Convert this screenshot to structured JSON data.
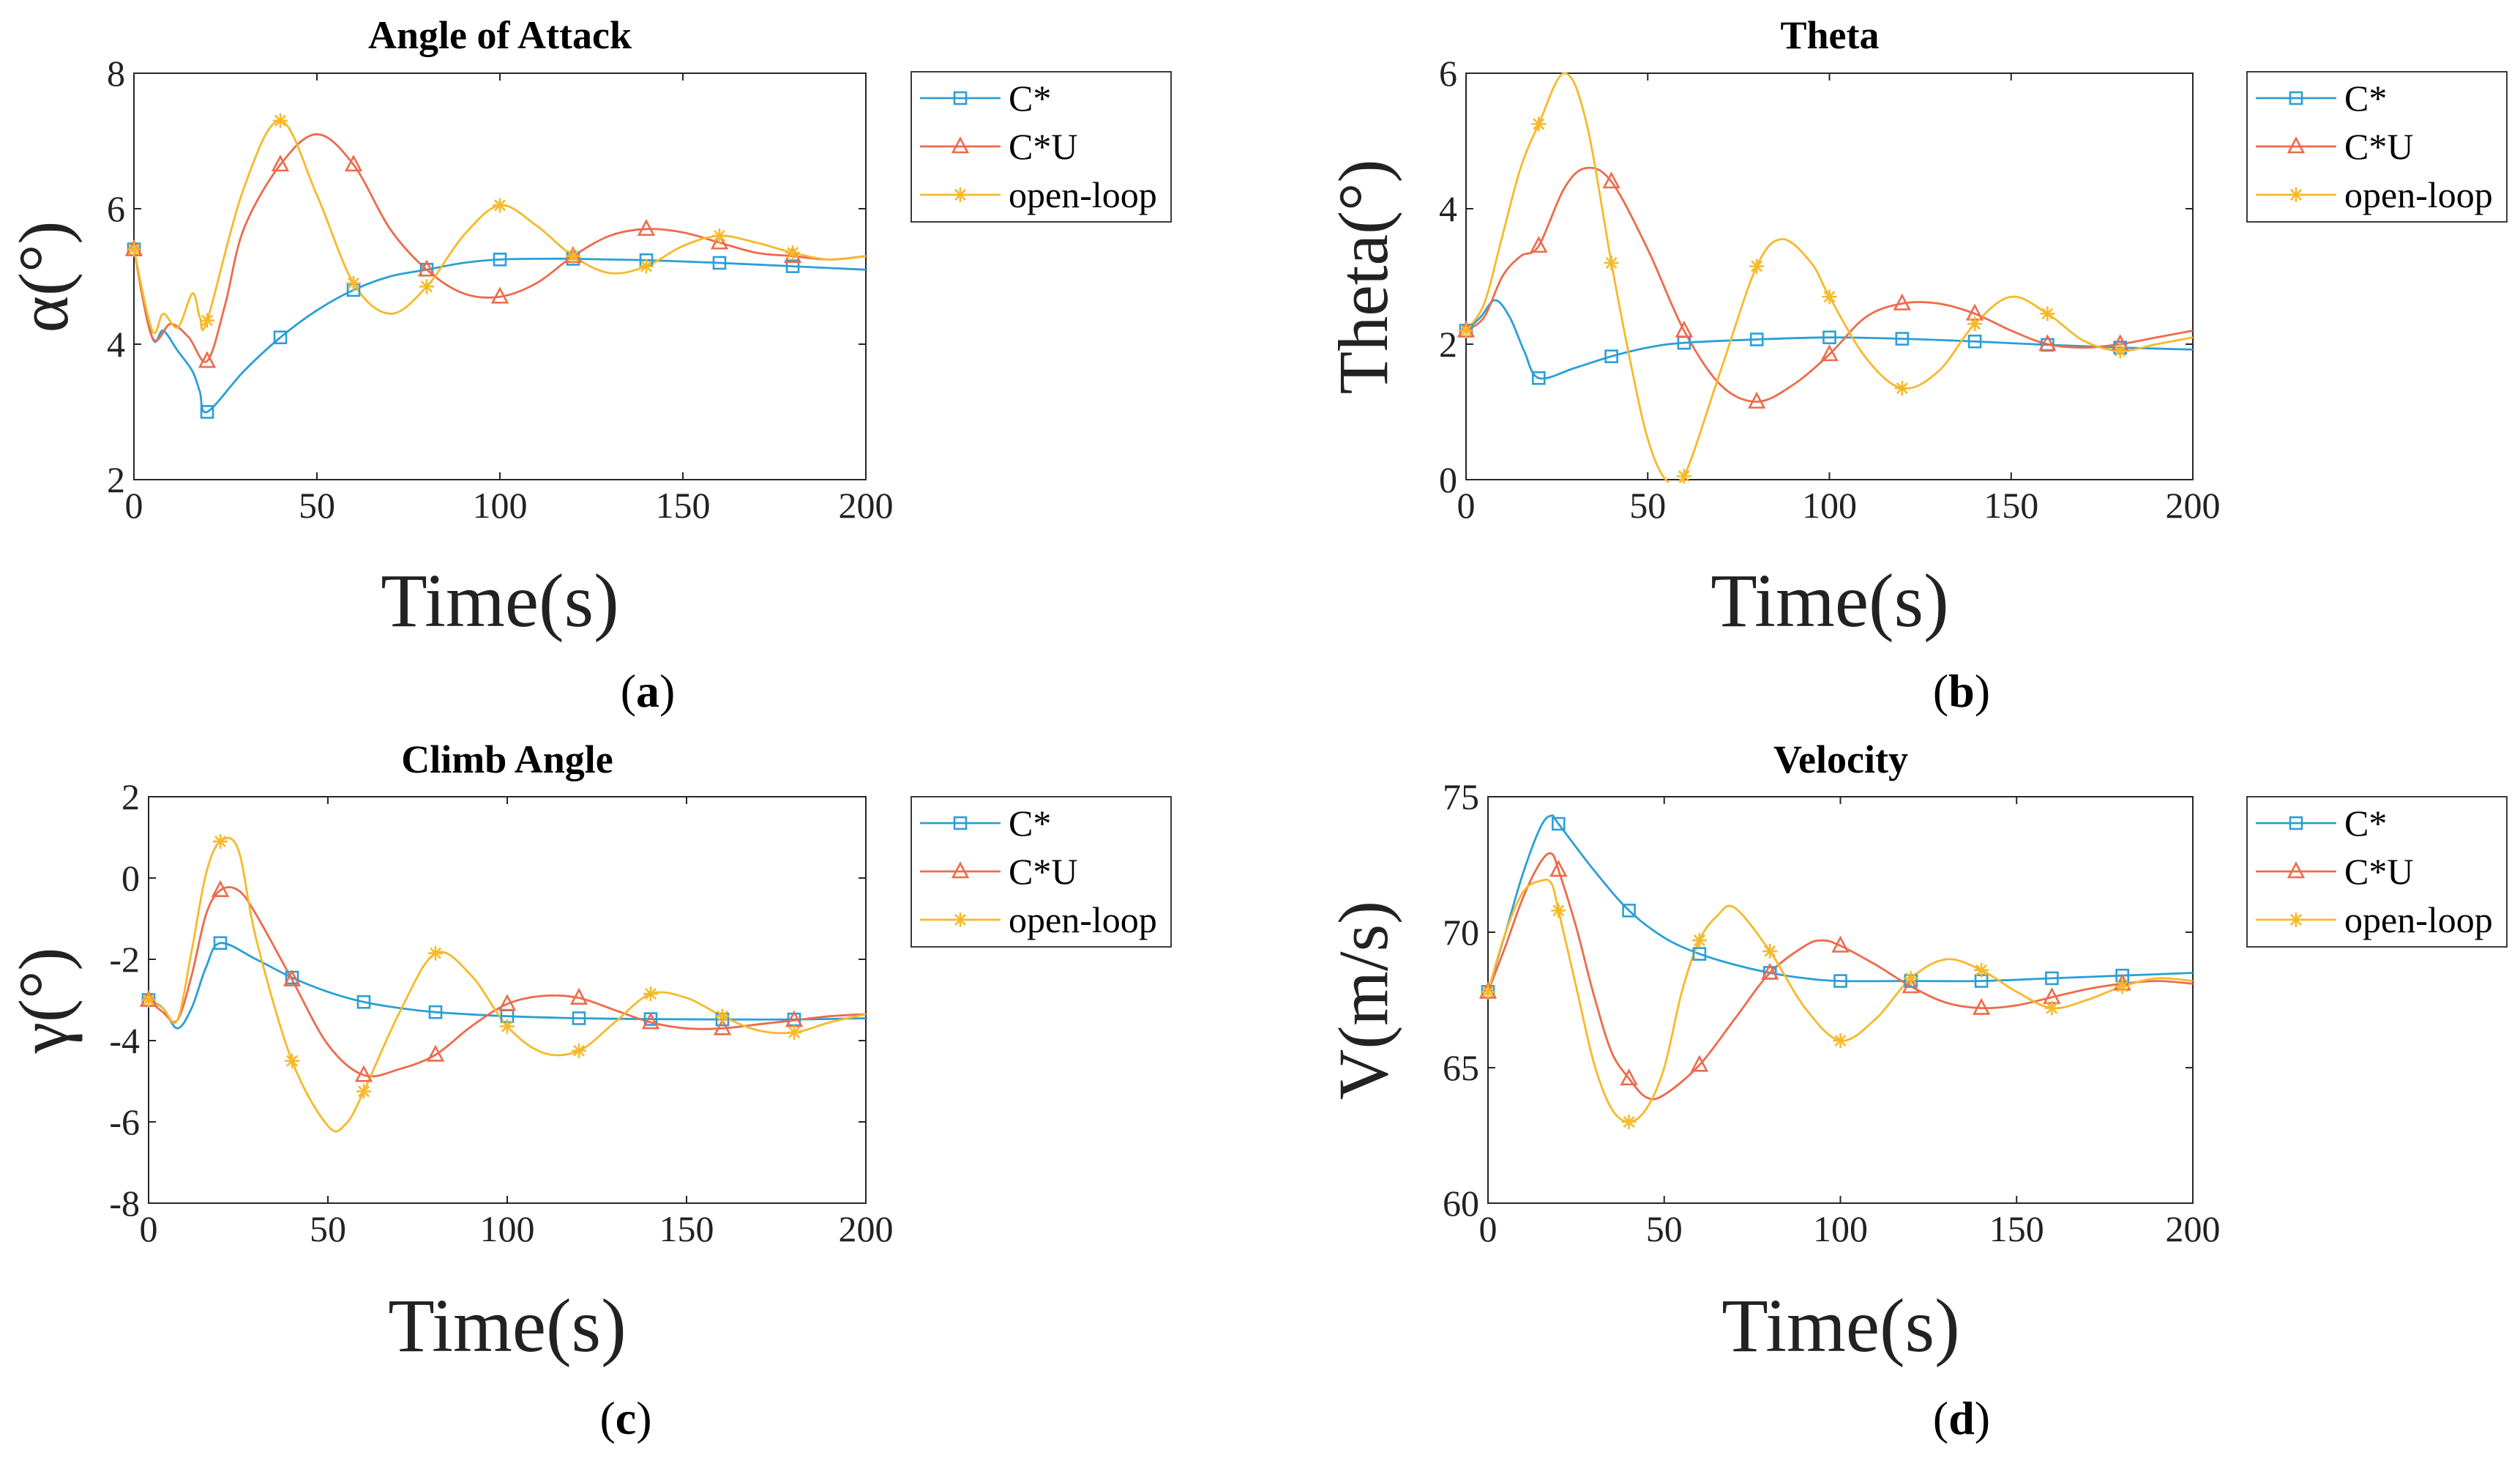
{
  "colors": {
    "cstar": "#2a9fd6",
    "cstaru": "#ee6a4b",
    "openloop": "#f7b929"
  },
  "chart_data": [
    {
      "type": "line",
      "title": "Angle of Attack",
      "xlabel": "Time(s)",
      "ylabel": "α(°)",
      "caption": "a",
      "xlim": [
        0,
        200
      ],
      "ylim": [
        2,
        8
      ],
      "xticks": [
        0,
        50,
        100,
        150,
        200
      ],
      "yticks": [
        2,
        4,
        6,
        8
      ],
      "series": [
        {
          "name": "C*",
          "x": [
            0,
            5,
            8,
            12,
            16,
            18,
            20,
            30,
            40,
            50,
            60,
            70,
            80,
            90,
            100,
            110,
            120,
            130,
            140,
            160,
            180,
            200
          ],
          "y": [
            5.4,
            4.1,
            4.2,
            3.9,
            3.6,
            3.3,
            3.0,
            3.6,
            4.1,
            4.5,
            4.8,
            5.0,
            5.1,
            5.2,
            5.25,
            5.26,
            5.26,
            5.25,
            5.24,
            5.2,
            5.15,
            5.1
          ]
        },
        {
          "name": "C*U",
          "x": [
            0,
            5,
            10,
            15,
            20,
            25,
            30,
            40,
            50,
            60,
            70,
            80,
            90,
            100,
            110,
            120,
            130,
            140,
            150,
            160,
            170,
            180,
            190,
            200
          ],
          "y": [
            5.4,
            4.1,
            4.3,
            4.1,
            3.75,
            4.6,
            5.7,
            6.65,
            7.1,
            6.65,
            5.7,
            5.1,
            4.75,
            4.7,
            4.9,
            5.3,
            5.6,
            5.7,
            5.65,
            5.5,
            5.35,
            5.3,
            5.25,
            5.3
          ]
        },
        {
          "name": "open-loop",
          "x": [
            0,
            5,
            8,
            12,
            16,
            18,
            20,
            30,
            40,
            50,
            60,
            70,
            80,
            90,
            100,
            110,
            120,
            130,
            140,
            150,
            160,
            170,
            180,
            190,
            200
          ],
          "y": [
            5.4,
            4.2,
            4.45,
            4.25,
            4.75,
            4.4,
            4.35,
            6.3,
            7.3,
            6.2,
            4.9,
            4.45,
            4.85,
            5.6,
            6.05,
            5.75,
            5.3,
            5.05,
            5.15,
            5.45,
            5.6,
            5.5,
            5.35,
            5.25,
            5.3
          ]
        }
      ],
      "markers": {
        "C*": [
          0,
          20,
          40,
          60,
          80,
          100,
          120,
          140,
          160,
          180
        ],
        "C*U": [
          0,
          20,
          40,
          60,
          80,
          100,
          120,
          140,
          160,
          180
        ],
        "open-loop": [
          0,
          20,
          40,
          60,
          80,
          100,
          120,
          140,
          160,
          180
        ]
      }
    },
    {
      "type": "line",
      "title": "Theta",
      "xlabel": "Time(s)",
      "ylabel": "Theta(°)",
      "caption": "b",
      "xlim": [
        0,
        200
      ],
      "ylim": [
        0,
        6
      ],
      "xticks": [
        0,
        50,
        100,
        150,
        200
      ],
      "yticks": [
        0,
        2,
        4,
        6
      ],
      "series": [
        {
          "name": "C*",
          "x": [
            0,
            4,
            8,
            12,
            16,
            20,
            30,
            40,
            50,
            60,
            80,
            100,
            120,
            140,
            160,
            180,
            200
          ],
          "y": [
            2.2,
            2.4,
            2.65,
            2.4,
            1.9,
            1.5,
            1.65,
            1.82,
            1.95,
            2.02,
            2.07,
            2.1,
            2.08,
            2.04,
            1.99,
            1.95,
            1.92
          ]
        },
        {
          "name": "C*U",
          "x": [
            0,
            5,
            10,
            15,
            20,
            27,
            33,
            40,
            50,
            60,
            70,
            80,
            90,
            100,
            110,
            120,
            130,
            140,
            150,
            160,
            170,
            180,
            190,
            200
          ],
          "y": [
            2.2,
            2.4,
            3.0,
            3.3,
            3.45,
            4.3,
            4.6,
            4.4,
            3.4,
            2.2,
            1.4,
            1.15,
            1.4,
            1.85,
            2.4,
            2.6,
            2.6,
            2.45,
            2.2,
            2.0,
            1.95,
            2.0,
            2.1,
            2.2
          ]
        },
        {
          "name": "open-loop",
          "x": [
            0,
            5,
            10,
            15,
            20,
            27,
            33,
            40,
            45,
            50,
            55,
            60,
            70,
            80,
            87,
            95,
            100,
            110,
            120,
            130,
            140,
            150,
            160,
            170,
            180,
            190,
            200
          ],
          "y": [
            2.2,
            2.6,
            3.6,
            4.6,
            5.25,
            6.0,
            5.3,
            3.2,
            1.8,
            0.6,
            0.0,
            0.05,
            1.6,
            3.15,
            3.55,
            3.2,
            2.7,
            1.8,
            1.35,
            1.6,
            2.3,
            2.7,
            2.45,
            2.05,
            1.9,
            2.0,
            2.1
          ]
        }
      ],
      "markers": {
        "C*": [
          0,
          20,
          40,
          60,
          80,
          100,
          120,
          140,
          160,
          180
        ],
        "C*U": [
          0,
          20,
          40,
          60,
          80,
          100,
          120,
          140,
          160,
          180
        ],
        "open-loop": [
          0,
          20,
          40,
          60,
          80,
          100,
          120,
          140,
          160,
          180
        ]
      }
    },
    {
      "type": "line",
      "title": "Climb Angle",
      "xlabel": "Time(s)",
      "ylabel": "γ(°)",
      "caption": "c",
      "xlim": [
        0,
        200
      ],
      "ylim": [
        -8,
        2
      ],
      "xticks": [
        0,
        50,
        100,
        150,
        200
      ],
      "yticks": [
        -8,
        -6,
        -4,
        -2,
        0,
        2
      ],
      "series": [
        {
          "name": "C*",
          "x": [
            0,
            4,
            8,
            12,
            16,
            20,
            30,
            40,
            50,
            60,
            70,
            80,
            100,
            120,
            140,
            160,
            180,
            200
          ],
          "y": [
            -3.0,
            -3.2,
            -3.7,
            -3.2,
            -2.2,
            -1.6,
            -2.0,
            -2.45,
            -2.8,
            -3.05,
            -3.2,
            -3.3,
            -3.4,
            -3.45,
            -3.47,
            -3.48,
            -3.48,
            -3.45
          ]
        },
        {
          "name": "C*U",
          "x": [
            0,
            4,
            8,
            12,
            16,
            20,
            25,
            30,
            40,
            50,
            60,
            70,
            80,
            90,
            100,
            110,
            120,
            130,
            140,
            150,
            160,
            170,
            180,
            190,
            200
          ],
          "y": [
            -3.0,
            -3.3,
            -3.5,
            -2.4,
            -0.9,
            -0.3,
            -0.3,
            -0.9,
            -2.5,
            -4.1,
            -4.85,
            -4.7,
            -4.35,
            -3.65,
            -3.1,
            -2.9,
            -2.95,
            -3.25,
            -3.55,
            -3.7,
            -3.7,
            -3.6,
            -3.5,
            -3.4,
            -3.35
          ]
        },
        {
          "name": "open-loop",
          "x": [
            0,
            4,
            8,
            12,
            16,
            20,
            25,
            30,
            40,
            50,
            55,
            60,
            70,
            80,
            90,
            100,
            110,
            120,
            130,
            140,
            150,
            160,
            170,
            180,
            190,
            200
          ],
          "y": [
            -3.0,
            -3.2,
            -3.5,
            -1.8,
            0.1,
            0.9,
            0.7,
            -1.5,
            -4.5,
            -6.1,
            -6.05,
            -5.25,
            -3.3,
            -1.85,
            -2.4,
            -3.65,
            -4.3,
            -4.25,
            -3.55,
            -2.85,
            -2.95,
            -3.4,
            -3.75,
            -3.8,
            -3.55,
            -3.35
          ]
        }
      ],
      "markers": {
        "C*": [
          0,
          20,
          40,
          60,
          80,
          100,
          120,
          140,
          160,
          180
        ],
        "C*U": [
          0,
          20,
          40,
          60,
          80,
          100,
          120,
          140,
          160,
          180
        ],
        "open-loop": [
          0,
          20,
          40,
          60,
          80,
          100,
          120,
          140,
          160,
          180
        ]
      }
    },
    {
      "type": "line",
      "title": "Velocity",
      "xlabel": "Time(s)",
      "ylabel": "V(m/s)",
      "caption": "d",
      "xlim": [
        0,
        200
      ],
      "ylim": [
        60,
        75
      ],
      "xticks": [
        0,
        50,
        100,
        150,
        200
      ],
      "yticks": [
        60,
        65,
        70,
        75
      ],
      "series": [
        {
          "name": "C*",
          "x": [
            0,
            5,
            10,
            15,
            18,
            20,
            30,
            40,
            50,
            60,
            70,
            80,
            90,
            100,
            120,
            140,
            160,
            180,
            200
          ],
          "y": [
            67.8,
            70.0,
            72.2,
            73.9,
            74.3,
            74.0,
            72.3,
            70.8,
            69.8,
            69.2,
            68.8,
            68.5,
            68.3,
            68.2,
            68.2,
            68.2,
            68.3,
            68.4,
            68.5
          ]
        },
        {
          "name": "C*U",
          "x": [
            0,
            5,
            10,
            15,
            18,
            20,
            25,
            30,
            35,
            40,
            45,
            50,
            60,
            70,
            80,
            90,
            95,
            100,
            110,
            120,
            130,
            140,
            150,
            160,
            170,
            180,
            190,
            200
          ],
          "y": [
            67.8,
            69.5,
            71.3,
            72.6,
            72.9,
            72.3,
            70.2,
            67.7,
            65.6,
            64.6,
            63.9,
            64.0,
            65.1,
            66.8,
            68.5,
            69.5,
            69.7,
            69.5,
            68.8,
            68.0,
            67.4,
            67.2,
            67.3,
            67.6,
            67.9,
            68.1,
            68.2,
            68.1
          ]
        },
        {
          "name": "open-loop",
          "x": [
            0,
            5,
            10,
            15,
            18,
            20,
            25,
            30,
            35,
            40,
            45,
            50,
            55,
            60,
            65,
            70,
            80,
            90,
            100,
            110,
            120,
            130,
            140,
            150,
            160,
            170,
            180,
            190,
            200
          ],
          "y": [
            67.8,
            70.0,
            71.5,
            71.9,
            71.8,
            70.8,
            68.0,
            65.2,
            63.5,
            63.0,
            63.5,
            65.0,
            67.8,
            69.7,
            70.6,
            70.9,
            69.3,
            67.2,
            66.0,
            66.8,
            68.3,
            69.0,
            68.6,
            67.8,
            67.2,
            67.5,
            68.0,
            68.3,
            68.2
          ]
        }
      ],
      "markers": {
        "C*": [
          0,
          20,
          40,
          60,
          80,
          100,
          120,
          140,
          160,
          180
        ],
        "C*U": [
          0,
          20,
          40,
          60,
          80,
          100,
          120,
          140,
          160,
          180
        ],
        "open-loop": [
          0,
          20,
          40,
          60,
          80,
          100,
          120,
          140,
          160,
          180
        ]
      }
    }
  ]
}
